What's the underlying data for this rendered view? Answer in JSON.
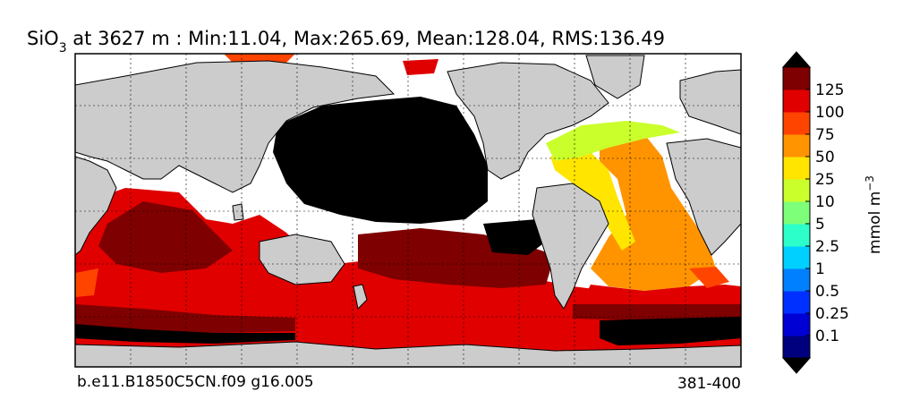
{
  "title": {
    "variable": "SiO",
    "subscript": "3",
    "rest": " at 3627 m : Min:11.04, Max:265.69, Mean:128.04, RMS:136.49"
  },
  "footer": {
    "case_name": "b.e11.B1850C5CN.f09 g16.005",
    "years": "381-400"
  },
  "colorbar": {
    "unit_main": "mmol m",
    "unit_exp": "−3",
    "ticks": [
      "0.1",
      "0.25",
      "0.5",
      "1",
      "2.5",
      "5",
      "10",
      "25",
      "50",
      "75",
      "100",
      "125"
    ],
    "colors": [
      "#00007f",
      "#0000d5",
      "#0030ff",
      "#0080ff",
      "#00d0ff",
      "#2cffca",
      "#7dff7a",
      "#caff2c",
      "#ffe500",
      "#ff9400",
      "#ff4400",
      "#e00000",
      "#7f0000"
    ],
    "extend_low_color": "#000000",
    "extend_high_color": "#000000"
  },
  "map": {
    "land_color": "#cccccc",
    "missing_color": "#ffffff"
  }
}
